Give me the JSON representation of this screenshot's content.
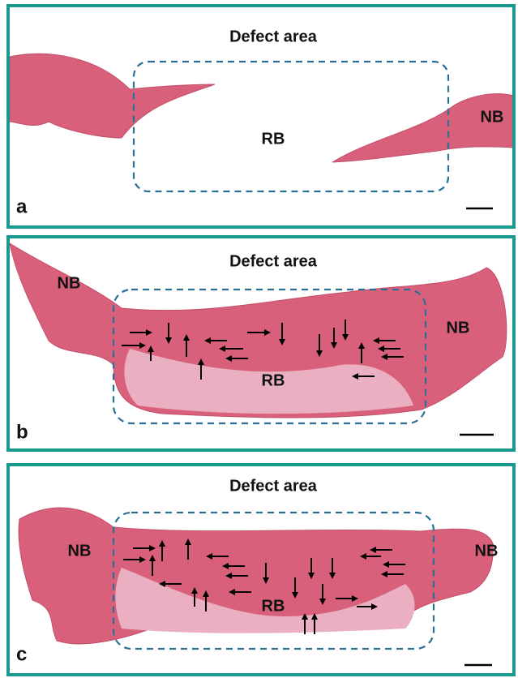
{
  "panels": [
    {
      "letter": "a",
      "title": "Defect area",
      "labels": [
        "RB",
        "NB"
      ]
    },
    {
      "letter": "b",
      "title": "Defect area",
      "labels": [
        "NB",
        "NB",
        "RB"
      ]
    },
    {
      "letter": "c",
      "title": "Defect area",
      "labels": [
        "NB",
        "NB",
        "RB"
      ]
    }
  ]
}
